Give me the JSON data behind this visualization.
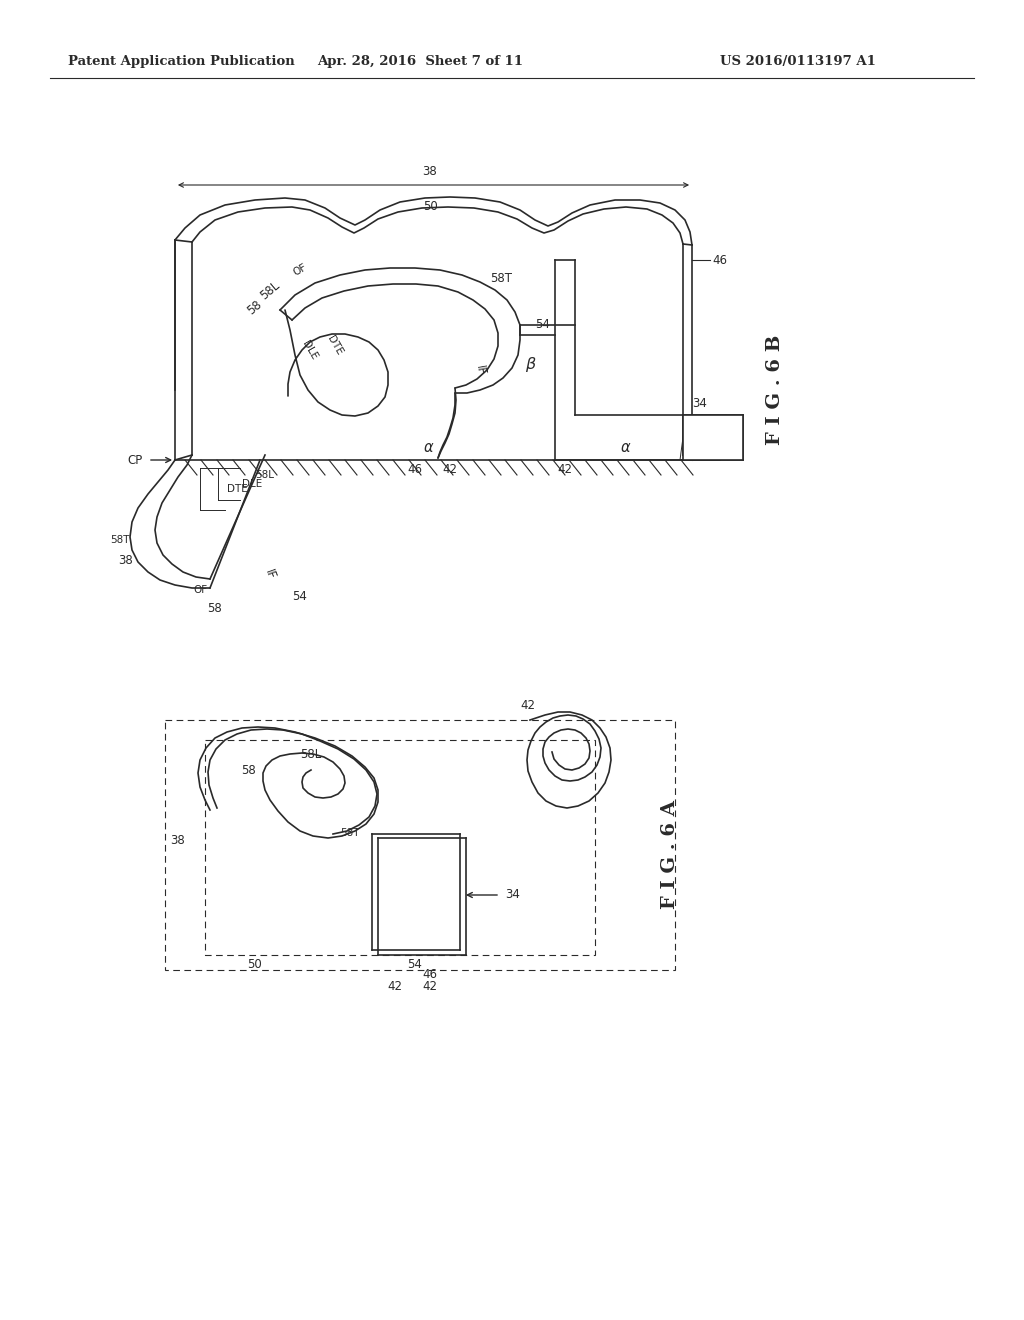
{
  "background_color": "#ffffff",
  "header_left": "Patent Application Publication",
  "header_center": "Apr. 28, 2016  Sheet 7 of 11",
  "header_right": "US 2016/0113197 A1",
  "fig6b_label": "F I G . 6 B",
  "fig6a_label": "F I G . 6 A",
  "line_color": "#2a2a2a",
  "label_fontsize": 8.5,
  "header_fontsize": 9.5
}
